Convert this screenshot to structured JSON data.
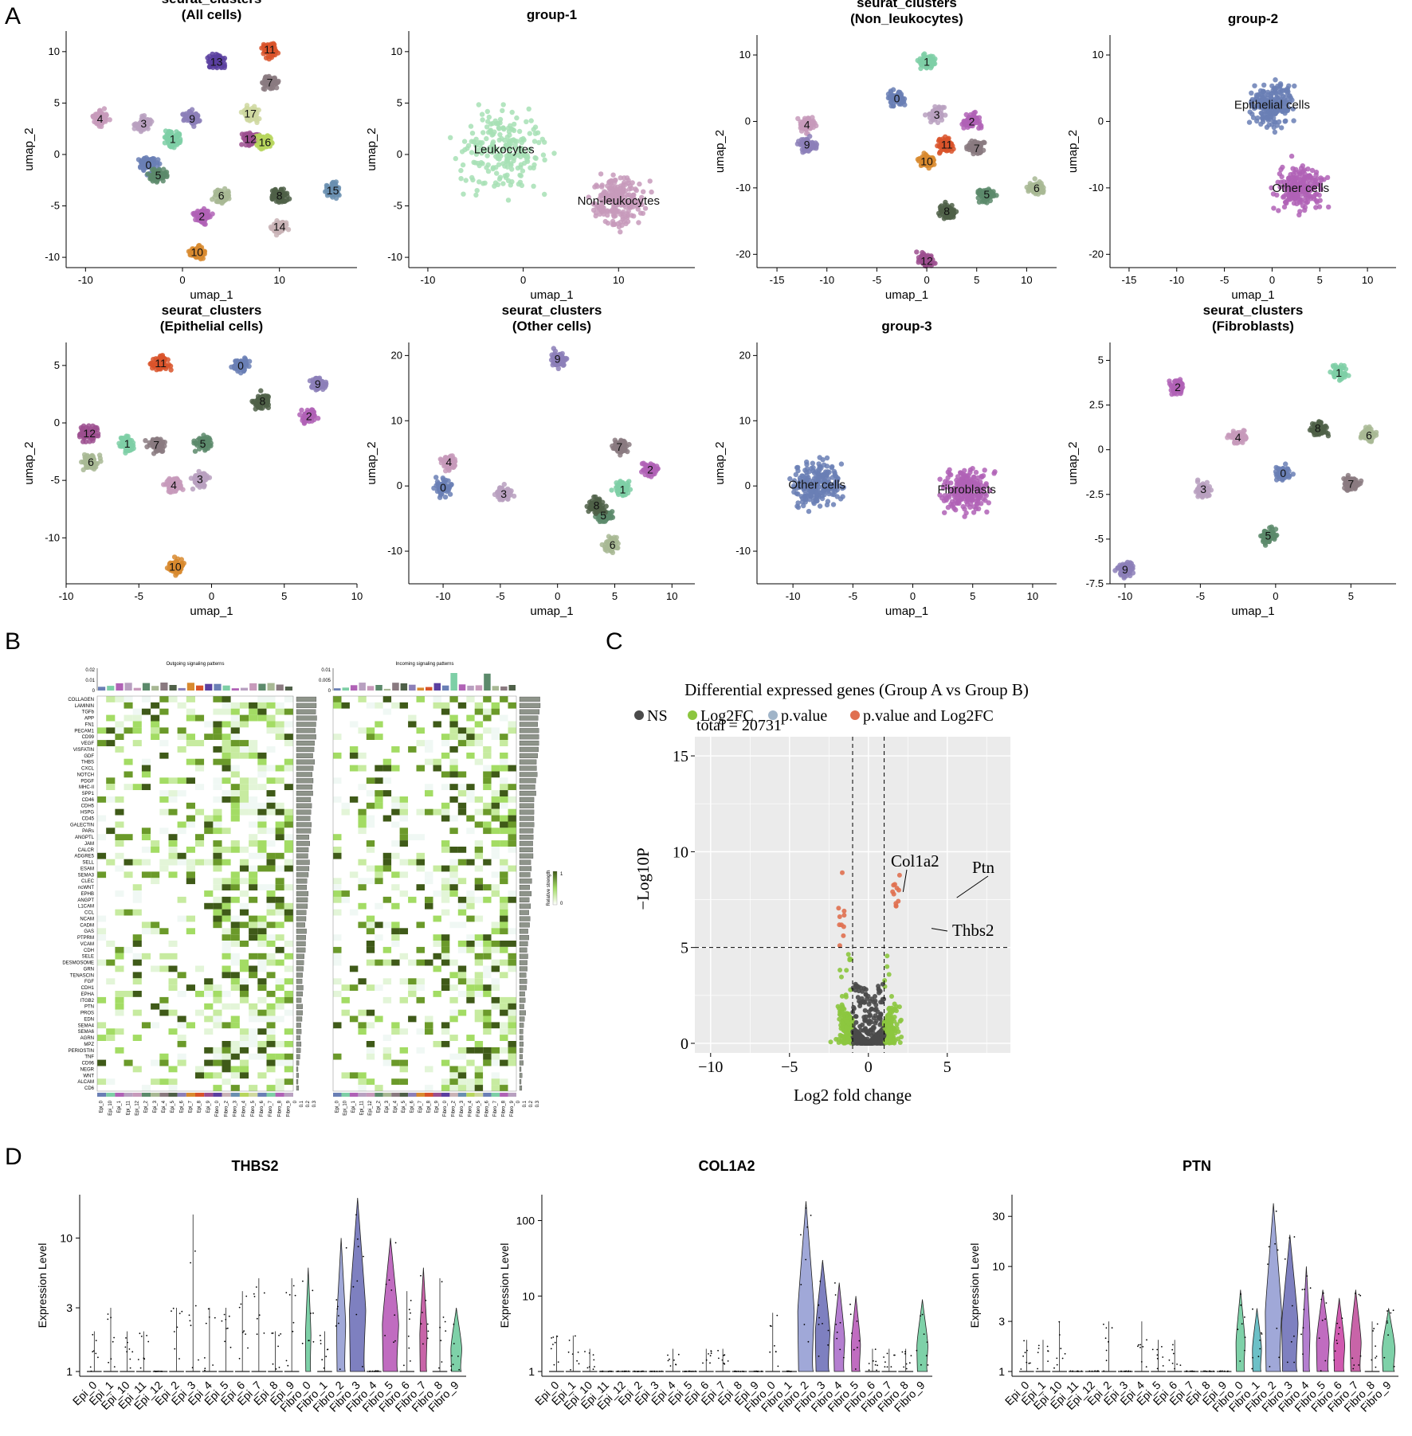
{
  "panel_labels": [
    "A",
    "B",
    "C",
    "D"
  ],
  "chart_data": [
    {
      "id": "A1",
      "type": "scatter",
      "title": "seurat_clusters",
      "subtitle": "(All cells)",
      "xlabel": "umap_1",
      "ylabel": "umap_2",
      "xlim": [
        -12,
        18
      ],
      "ylim": [
        -11,
        12
      ],
      "xticks": [
        -10,
        0,
        10
      ],
      "yticks": [
        -10,
        -5,
        0,
        5,
        10
      ],
      "clusters": [
        {
          "label": "0",
          "x": -3.5,
          "y": -1
        },
        {
          "label": "1",
          "x": -1,
          "y": 1.5
        },
        {
          "label": "2",
          "x": 2,
          "y": -6
        },
        {
          "label": "3",
          "x": -4,
          "y": 3
        },
        {
          "label": "4",
          "x": -8.5,
          "y": 3.5
        },
        {
          "label": "5",
          "x": -2.5,
          "y": -2
        },
        {
          "label": "6",
          "x": 4,
          "y": -4
        },
        {
          "label": "7",
          "x": 9,
          "y": 7
        },
        {
          "label": "8",
          "x": 10,
          "y": -4
        },
        {
          "label": "9",
          "x": 1,
          "y": 3.5
        },
        {
          "label": "10",
          "x": 1.5,
          "y": -9.5
        },
        {
          "label": "11",
          "x": 9,
          "y": 10.2
        },
        {
          "label": "12",
          "x": 7,
          "y": 1.5
        },
        {
          "label": "13",
          "x": 3.5,
          "y": 9
        },
        {
          "label": "14",
          "x": 10,
          "y": -7
        },
        {
          "label": "15",
          "x": 15.5,
          "y": -3.5
        },
        {
          "label": "16",
          "x": 8.5,
          "y": 1.2
        },
        {
          "label": "17",
          "x": 7,
          "y": 4
        }
      ]
    },
    {
      "id": "A2",
      "type": "scatter",
      "title": "group-1",
      "subtitle": "",
      "xlabel": "umap_1",
      "ylabel": "umap_2",
      "xlim": [
        -12,
        18
      ],
      "ylim": [
        -11,
        12
      ],
      "xticks": [
        -10,
        0,
        10
      ],
      "yticks": [
        -10,
        -5,
        0,
        5,
        10
      ],
      "clusters": [
        {
          "label": "Leukocytes",
          "x": -2,
          "y": 0.5
        },
        {
          "label": "Non-leukocytes",
          "x": 10,
          "y": -4.5
        }
      ]
    },
    {
      "id": "A3",
      "type": "scatter",
      "title": "seurat_clusters",
      "subtitle": "(Non_leukocytes)",
      "xlabel": "umap_1",
      "ylabel": "umap_2",
      "xlim": [
        -17,
        13
      ],
      "ylim": [
        -22,
        13
      ],
      "xticks": [
        -15,
        -10,
        -5,
        0,
        5,
        10
      ],
      "yticks": [
        -20,
        -10,
        0,
        10
      ],
      "clusters": [
        {
          "label": "0",
          "x": -3,
          "y": 3.5
        },
        {
          "label": "1",
          "x": 0,
          "y": 9
        },
        {
          "label": "2",
          "x": 4.5,
          "y": 0
        },
        {
          "label": "3",
          "x": 1,
          "y": 1
        },
        {
          "label": "4",
          "x": -12,
          "y": -0.5
        },
        {
          "label": "5",
          "x": 6,
          "y": -11
        },
        {
          "label": "6",
          "x": 11,
          "y": -10
        },
        {
          "label": "7",
          "x": 5,
          "y": -4
        },
        {
          "label": "8",
          "x": 2,
          "y": -13.5
        },
        {
          "label": "9",
          "x": -12,
          "y": -3.5
        },
        {
          "label": "10",
          "x": 0,
          "y": -6
        },
        {
          "label": "11",
          "x": 2,
          "y": -3.5
        },
        {
          "label": "12",
          "x": 0,
          "y": -21
        }
      ]
    },
    {
      "id": "A4",
      "type": "scatter",
      "title": "group-2",
      "subtitle": "",
      "xlabel": "umap_1",
      "ylabel": "umap_2",
      "xlim": [
        -17,
        13
      ],
      "ylim": [
        -22,
        13
      ],
      "xticks": [
        -15,
        -10,
        -5,
        0,
        5,
        10
      ],
      "yticks": [
        -20,
        -10,
        0,
        10
      ],
      "clusters": [
        {
          "label": "Epithelial cells",
          "x": 0,
          "y": 2.5
        },
        {
          "label": "Other cells",
          "x": 3,
          "y": -10
        }
      ]
    },
    {
      "id": "A5",
      "type": "scatter",
      "title": "seurat_clusters",
      "subtitle": "(Epithelial cells)",
      "xlabel": "umap_1",
      "ylabel": "umap_2",
      "xlim": [
        -10,
        10
      ],
      "ylim": [
        -14,
        7
      ],
      "xticks": [
        -10,
        -5,
        0,
        5,
        10
      ],
      "yticks": [
        -10,
        -5,
        0,
        5
      ],
      "clusters": [
        {
          "label": "0",
          "x": 2,
          "y": 5
        },
        {
          "label": "1",
          "x": -5.8,
          "y": -1.8
        },
        {
          "label": "2",
          "x": 6.7,
          "y": 0.6
        },
        {
          "label": "3",
          "x": -0.8,
          "y": -4.9
        },
        {
          "label": "4",
          "x": -2.6,
          "y": -5.4
        },
        {
          "label": "5",
          "x": -0.6,
          "y": -1.8
        },
        {
          "label": "6",
          "x": -8.3,
          "y": -3.4
        },
        {
          "label": "7",
          "x": -3.8,
          "y": -1.9
        },
        {
          "label": "8",
          "x": 3.5,
          "y": 1.9
        },
        {
          "label": "9",
          "x": 7.3,
          "y": 3.4
        },
        {
          "label": "10",
          "x": -2.5,
          "y": -12.5
        },
        {
          "label": "11",
          "x": -3.5,
          "y": 5.2
        },
        {
          "label": "12",
          "x": -8.4,
          "y": -0.9
        }
      ]
    },
    {
      "id": "A6",
      "type": "scatter",
      "title": "seurat_clusters",
      "subtitle": "(Other cells)",
      "xlabel": "umap_1",
      "ylabel": "umap_2",
      "xlim": [
        -13,
        12
      ],
      "ylim": [
        -15,
        22
      ],
      "xticks": [
        -10,
        -5,
        0,
        5,
        10
      ],
      "yticks": [
        -10,
        0,
        10,
        20
      ],
      "clusters": [
        {
          "label": "0",
          "x": -10,
          "y": -0.2
        },
        {
          "label": "1",
          "x": 5.7,
          "y": -0.5
        },
        {
          "label": "2",
          "x": 8.1,
          "y": 2.5
        },
        {
          "label": "3",
          "x": -4.7,
          "y": -1.2
        },
        {
          "label": "4",
          "x": -9.5,
          "y": 3.7
        },
        {
          "label": "5",
          "x": 4,
          "y": -4.5
        },
        {
          "label": "6",
          "x": 4.8,
          "y": -9
        },
        {
          "label": "7",
          "x": 5.4,
          "y": 6
        },
        {
          "label": "8",
          "x": 3.4,
          "y": -3
        },
        {
          "label": "9",
          "x": 0,
          "y": 19.5
        }
      ]
    },
    {
      "id": "A7",
      "type": "scatter",
      "title": "group-3",
      "subtitle": "",
      "xlabel": "umap_1",
      "ylabel": "umap_2",
      "xlim": [
        -13,
        12
      ],
      "ylim": [
        -15,
        22
      ],
      "xticks": [
        -10,
        -5,
        0,
        5,
        10
      ],
      "yticks": [
        -10,
        0,
        10,
        20
      ],
      "clusters": [
        {
          "label": "Other cells",
          "x": -8,
          "y": 0.2
        },
        {
          "label": "Fibroblasts",
          "x": 4.5,
          "y": -0.5
        }
      ]
    },
    {
      "id": "A8",
      "type": "scatter",
      "title": "seurat_clusters",
      "subtitle": "(Fibroblasts)",
      "xlabel": "umap_1",
      "ylabel": "umap_2",
      "xlim": [
        -11,
        8
      ],
      "ylim": [
        -7.5,
        6
      ],
      "xticks": [
        -10,
        -5,
        0,
        5
      ],
      "yticks": [
        -7.5,
        -5.0,
        -2.5,
        0.0,
        2.5,
        5.0
      ],
      "clusters": [
        {
          "label": "0",
          "x": 0.5,
          "y": -1.3
        },
        {
          "label": "1",
          "x": 4.2,
          "y": 4.3
        },
        {
          "label": "2",
          "x": -6.5,
          "y": 3.5
        },
        {
          "label": "3",
          "x": -4.8,
          "y": -2.2
        },
        {
          "label": "4",
          "x": -2.5,
          "y": 0.7
        },
        {
          "label": "5",
          "x": -0.5,
          "y": -4.8
        },
        {
          "label": "6",
          "x": 6.2,
          "y": 0.8
        },
        {
          "label": "7",
          "x": 5,
          "y": -1.9
        },
        {
          "label": "8",
          "x": 2.8,
          "y": 1.2
        },
        {
          "label": "9",
          "x": -10,
          "y": -6.7
        }
      ]
    },
    {
      "id": "B",
      "type": "heatmap",
      "title_left": "Outgoing signaling patterns",
      "title_right": "Incoming signaling patterns",
      "legend_title": "Relative strength",
      "legend_ticks": [
        "1",
        "0"
      ],
      "bar_ticks_left": [
        "0.02",
        "0.01",
        "0"
      ],
      "bar_ticks_right": [
        "0.01",
        "0.005",
        "0"
      ],
      "side_ticks": [
        "0",
        "0.1",
        "0.2",
        "0.3"
      ],
      "rows": [
        "COLLAGEN",
        "LAMININ",
        "TGFb",
        "APP",
        "FN1",
        "PECAM1",
        "CD99",
        "VEGF",
        "VISFATIN",
        "GDF",
        "THBS",
        "CXCL",
        "NOTCH",
        "PDGF",
        "MHC-II",
        "SPP1",
        "CD46",
        "CDH5",
        "HSPG",
        "CD45",
        "GALECTIN",
        "PARs",
        "ANGPTL",
        "JAM",
        "CALCR",
        "ADGRE5",
        "SELL",
        "ESAM",
        "SEMA3",
        "CLEC",
        "ncWNT",
        "EPHB",
        "ANGPT",
        "L1CAM",
        "CCL",
        "NCAM",
        "CADM",
        "GAS",
        "PTPRM",
        "VCAM",
        "CDH",
        "SELE",
        "DESMOSOME",
        "GRN",
        "TENASCIN",
        "FGF",
        "CDH1",
        "EPHA",
        "ITGB2",
        "PTN",
        "PROS",
        "EDN",
        "SEMA4",
        "SEMA6",
        "AGRN",
        "MPZ",
        "PERIOSTIN",
        "TNF",
        "CD96",
        "NEGR",
        "WNT",
        "ALCAM",
        "CD6"
      ],
      "columns": [
        "Epi_0",
        "Epi_10",
        "Epi_1",
        "Epi_11",
        "Epi_12",
        "Epi_2",
        "Epi_3",
        "Epi_4",
        "Epi_5",
        "Epi_6",
        "Epi_7",
        "Epi_8",
        "Epi_9",
        "Fibro_0",
        "Fibro_2",
        "Fibro_3",
        "Fibro_4",
        "Fibro_5",
        "Fibro_6",
        "Fibro_7",
        "Fibro_8",
        "Fibro_9"
      ]
    },
    {
      "id": "C",
      "type": "scatter",
      "title": "Differential expressed genes (Group A vs Group B)",
      "legend": [
        "NS",
        "Log2FC",
        "p.value",
        "p.value and Log2FC"
      ],
      "legend_colors": [
        "#4a4a4a",
        "#8cc63f",
        "#a0b4c8",
        "#e07050"
      ],
      "total_label": "total = 20731",
      "xlabel": "Log2 fold change",
      "ylabel": "−Log10P",
      "xlim": [
        -11,
        9
      ],
      "ylim": [
        -0.5,
        16
      ],
      "xticks": [
        -10,
        -5,
        0,
        5
      ],
      "yticks": [
        0,
        5,
        10,
        15
      ],
      "vlines": [
        -1,
        1
      ],
      "hline": 5,
      "annotations": [
        {
          "label": "Col1a2",
          "x": 2.2,
          "y": 7.9
        },
        {
          "label": "Ptn",
          "x": 5.6,
          "y": 7.6
        },
        {
          "label": "Thbs2",
          "x": 4.0,
          "y": 6
        }
      ]
    },
    {
      "id": "D1",
      "type": "violin",
      "title": "THBS2",
      "ylabel": "Expression Level",
      "scale": "log",
      "yticks": [
        "1",
        "3",
        "10"
      ],
      "ytick_values": [
        1,
        3,
        10
      ],
      "ymax": 20,
      "categories": [
        "Epi_0",
        "Epi_1",
        "Epi_10",
        "Epi_11",
        "Epi_12",
        "Epi_2",
        "Epi_3",
        "Epi_4",
        "Epi_5",
        "Epi_6",
        "Epi_7",
        "Epi_8",
        "Epi_9",
        "Fibro_0",
        "Fibro_1",
        "Fibro_2",
        "Fibro_3",
        "Fibro_4",
        "Fibro_5",
        "Fibro_6",
        "Fibro_7",
        "Fibro_8",
        "Fibro_9"
      ],
      "max_values": [
        2,
        3,
        2,
        2,
        1,
        3,
        15,
        3,
        3,
        4,
        5,
        2,
        5,
        6,
        2,
        10,
        20,
        1,
        10,
        4,
        6,
        5,
        3
      ],
      "violin_widths": [
        0,
        0,
        0,
        0,
        0,
        0,
        0,
        0,
        0,
        0,
        0,
        0,
        0,
        0.3,
        0,
        0.5,
        0.9,
        0,
        0.9,
        0,
        0.4,
        0,
        0.6
      ]
    },
    {
      "id": "D2",
      "type": "violin",
      "title": "COL1A2",
      "ylabel": "Expression Level",
      "scale": "log",
      "yticks": [
        "1",
        "10",
        "100"
      ],
      "ytick_values": [
        1,
        10,
        100
      ],
      "ymax": 200,
      "categories": [
        "Epi_0",
        "Epi_1",
        "Epi_10",
        "Epi_11",
        "Epi_12",
        "Epi_2",
        "Epi_3",
        "Epi_4",
        "Epi_5",
        "Epi_6",
        "Epi_7",
        "Epi_8",
        "Epi_9",
        "Fibro_0",
        "Fibro_1",
        "Fibro_2",
        "Fibro_3",
        "Fibro_4",
        "Fibro_5",
        "Fibro_6",
        "Fibro_7",
        "Fibro_8",
        "Fibro_9"
      ],
      "max_values": [
        3,
        3,
        2,
        1,
        1,
        1,
        1,
        2,
        1,
        2,
        2,
        1,
        1,
        6,
        1,
        180,
        30,
        15,
        10,
        2,
        2,
        2,
        9
      ],
      "violin_widths": [
        0,
        0,
        0,
        0,
        0,
        0,
        0,
        0,
        0,
        0,
        0,
        0,
        0,
        0,
        0,
        0.9,
        0.8,
        0.6,
        0.5,
        0,
        0,
        0,
        0.6
      ]
    },
    {
      "id": "D3",
      "type": "violin",
      "title": "PTN",
      "ylabel": "Expression Level",
      "scale": "log",
      "yticks": [
        "1",
        "3",
        "10",
        "30"
      ],
      "ytick_values": [
        1,
        3,
        10,
        30
      ],
      "ymax": 45,
      "categories": [
        "Epi_0",
        "Epi_1",
        "Epi_10",
        "Epi_11",
        "Epi_12",
        "Epi_2",
        "Epi_3",
        "Epi_4",
        "Epi_5",
        "Epi_6",
        "Epi_7",
        "Epi_8",
        "Epi_9",
        "Fibro_0",
        "Fibro_1",
        "Fibro_2",
        "Fibro_3",
        "Fibro_4",
        "Fibro_5",
        "Fibro_6",
        "Fibro_7",
        "Fibro_8",
        "Fibro_9"
      ],
      "max_values": [
        2,
        2,
        3,
        1,
        1,
        3,
        1,
        3,
        2,
        2,
        1,
        1,
        1,
        6,
        4,
        40,
        20,
        10,
        6,
        5,
        6,
        3,
        4
      ],
      "violin_widths": [
        0,
        0,
        0,
        0,
        0,
        0,
        0,
        0,
        0,
        0,
        0,
        0,
        0,
        0.5,
        0.5,
        0.9,
        0.9,
        0.4,
        0.7,
        0.6,
        0.6,
        0,
        0.7
      ]
    }
  ]
}
